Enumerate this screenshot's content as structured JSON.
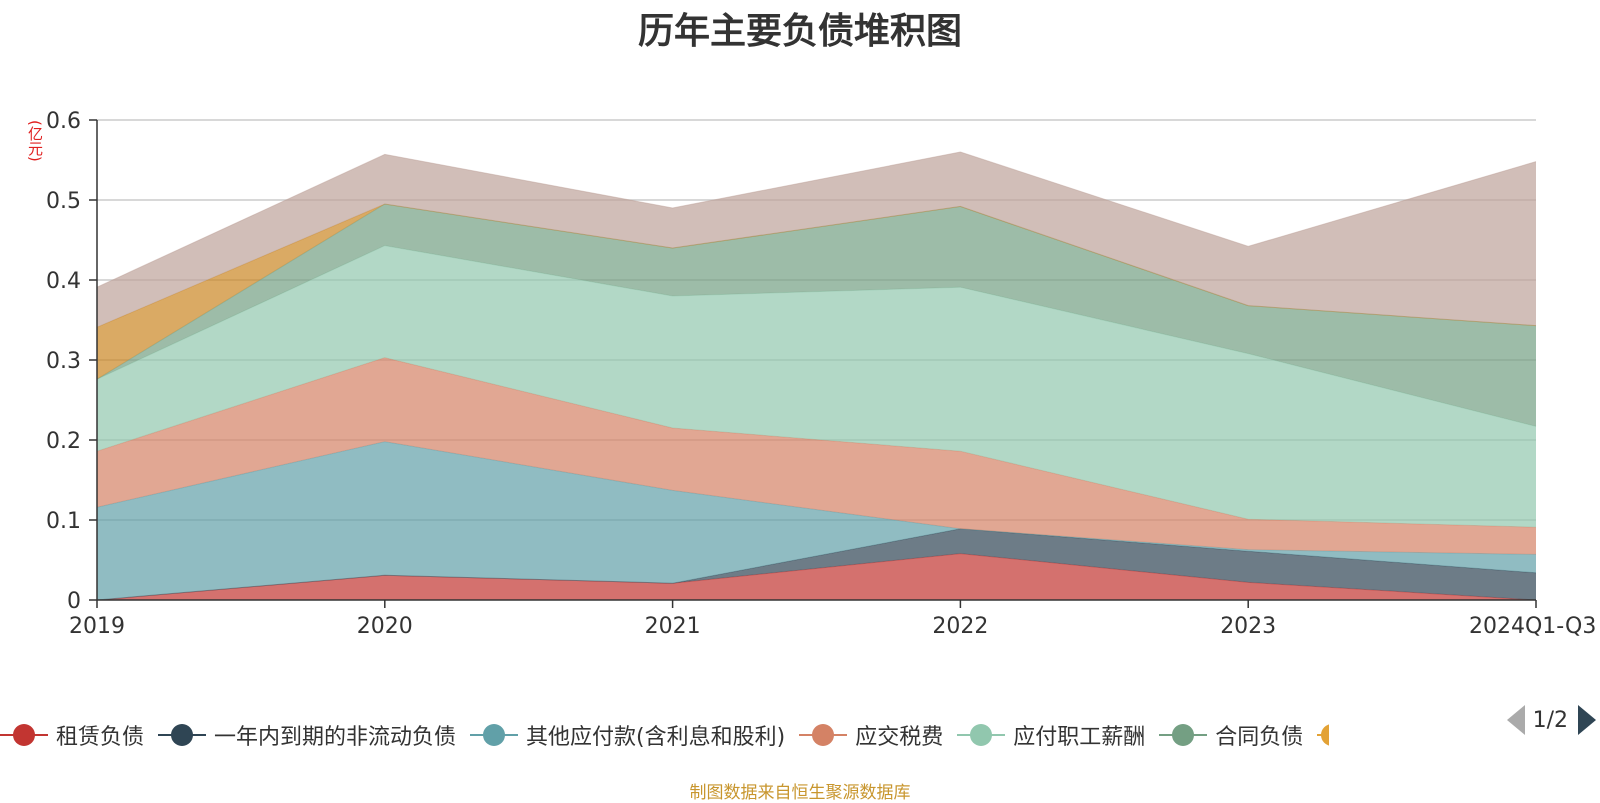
{
  "title": "历年主要负债堆积图",
  "unit": "(亿元)",
  "source": "制图数据来自恒生聚源数据库",
  "pager": {
    "text": "1/2"
  },
  "legend_partial_color": "#e3a235",
  "chart_data": {
    "type": "area",
    "stacked": true,
    "categories": [
      "2019",
      "2020",
      "2021",
      "2022",
      "2023",
      "2024Q1-Q3"
    ],
    "ylim": [
      0,
      0.6
    ],
    "yticks": [
      "0",
      "0.1",
      "0.2",
      "0.3",
      "0.4",
      "0.5",
      "0.6"
    ],
    "grid": true,
    "legend_position": "bottom",
    "series": [
      {
        "name": "租赁负债",
        "color": "#c23531",
        "values": [
          0.0,
          0.031,
          0.021,
          0.058,
          0.022,
          0.0
        ]
      },
      {
        "name": "一年内到期的非流动负债",
        "color": "#2f4554",
        "values": [
          0.0,
          0.0,
          0.0,
          0.031,
          0.039,
          0.034
        ]
      },
      {
        "name": "其他应付款(含利息和股利)",
        "color": "#61a0a8",
        "values": [
          0.116,
          0.167,
          0.116,
          0.0,
          0.002,
          0.023
        ]
      },
      {
        "name": "应交税费",
        "color": "#d48265",
        "values": [
          0.07,
          0.105,
          0.078,
          0.097,
          0.038,
          0.034
        ]
      },
      {
        "name": "应付职工薪酬",
        "color": "#91c7ae",
        "values": [
          0.09,
          0.14,
          0.165,
          0.205,
          0.207,
          0.126
        ]
      },
      {
        "name": "合同负债",
        "color": "#749f83",
        "values": [
          0.0,
          0.052,
          0.06,
          0.101,
          0.06,
          0.126
        ]
      },
      {
        "name": "",
        "color": "#ca8622",
        "values": [
          0.065,
          0.0,
          0.0,
          0.0,
          0.0,
          0.0
        ]
      },
      {
        "name": "",
        "color": "#bda29a",
        "values": [
          0.05,
          0.062,
          0.05,
          0.068,
          0.074,
          0.205
        ]
      }
    ]
  }
}
